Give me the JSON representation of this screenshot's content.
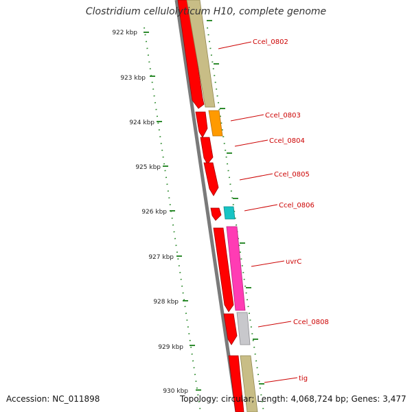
{
  "title": "Clostridium cellulolyticum H10, complete genome",
  "footer": {
    "accession": "Accession: NC_011898",
    "topology": "Topology: circular; Length: 4,068,724 bp; Genes: 3,477"
  },
  "colors": {
    "backbone": "#808080",
    "tick_green": "#2e8b2e",
    "label_red": "#cc0000",
    "cds_red": "#ff0000",
    "khaki": "#c8bd86",
    "orange": "#ff9a00",
    "cyan": "#17c4c4",
    "magenta": "#ff3cb4",
    "silver": "#c8c8cc"
  },
  "scale_labels": [
    {
      "text": "922 kbp"
    },
    {
      "text": "923 kbp"
    },
    {
      "text": "924 kbp"
    },
    {
      "text": "925 kbp"
    },
    {
      "text": "926 kbp"
    },
    {
      "text": "927 kbp"
    },
    {
      "text": "928 kbp"
    },
    {
      "text": "929 kbp"
    },
    {
      "text": "930 kbp"
    }
  ],
  "gene_labels": [
    {
      "text": "Ccel_0802"
    },
    {
      "text": "Ccel_0803"
    },
    {
      "text": "Ccel_0804"
    },
    {
      "text": "Ccel_0805"
    },
    {
      "text": "Ccel_0806"
    },
    {
      "text": "uvrC"
    },
    {
      "text": "Ccel_0808"
    },
    {
      "text": "tig"
    }
  ]
}
